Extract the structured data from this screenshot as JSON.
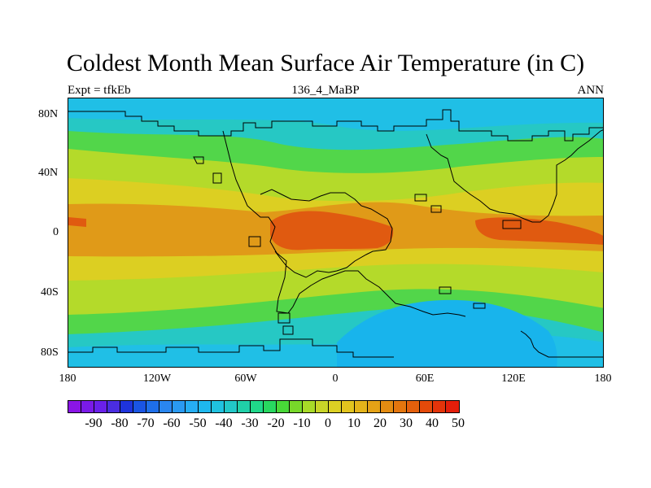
{
  "title": "Coldest Month Mean Surface Air Temperature (in C)",
  "subtitle_left": "Expt = tfkEb",
  "subtitle_center": "136_4_MaBP",
  "subtitle_right": "ANN",
  "lat_labels": [
    "80N",
    "40N",
    "0",
    "40S",
    "80S"
  ],
  "lon_labels": [
    "180",
    "120W",
    "60W",
    "0",
    "60E",
    "120E",
    "180"
  ],
  "colorbar": {
    "labels": [
      "-90",
      "-80",
      "-70",
      "-60",
      "-50",
      "-40",
      "-30",
      "-20",
      "-10",
      "0",
      "10",
      "20",
      "30",
      "40",
      "50"
    ],
    "colors": [
      "#8a15e6",
      "#7a1ae8",
      "#6a20ea",
      "#4a2de0",
      "#1e34dc",
      "#1a55e4",
      "#1e6fea",
      "#2a86ef",
      "#2a9af2",
      "#26aef3",
      "#1eb8ee",
      "#20c2e0",
      "#22c8c8",
      "#20d0a8",
      "#20d88a",
      "#28d860",
      "#48d838",
      "#78d82a",
      "#a8da28",
      "#c8d428",
      "#dcd024",
      "#e2c41e",
      "#e4b41a",
      "#e4a216",
      "#e48c12",
      "#e4760e",
      "#e4600c",
      "#e44a0a",
      "#e4340a",
      "#e41e0a"
    ]
  },
  "map": {
    "projection": "cylindrical-equidistant",
    "lon_range": [
      -180,
      180
    ],
    "lat_range": [
      -90,
      90
    ],
    "field": "coldest month mean surface air temperature",
    "palette": {
      "polar": "#20bfe6",
      "subpolar": "#26c8c4",
      "cool": "#52d64a",
      "mild": "#b4da2a",
      "warm": "#dccf22",
      "tropical": "#e09a18",
      "hot": "#e05a10",
      "antarctic": "#18b4ec"
    }
  }
}
